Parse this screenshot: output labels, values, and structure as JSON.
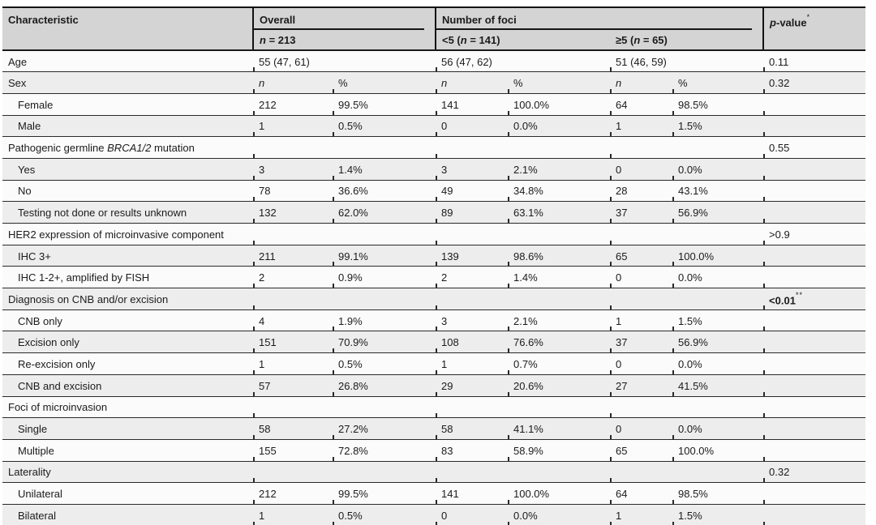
{
  "table": {
    "header": {
      "characteristic": "Characteristic",
      "overall_label": "Overall",
      "overall_n": "n",
      "overall_n_rest": " = 213",
      "foci_label": "Number of foci",
      "lt5_prefix": "<5 (",
      "lt5_n": "n",
      "lt5_rest": " = 141)",
      "ge5_prefix": "≥5 (",
      "ge5_n": "n",
      "ge5_rest": " = 65)",
      "pvalue_p": "p",
      "pvalue_rest": "-value",
      "pvalue_sup": "*"
    },
    "rows": [
      {
        "label": "Age",
        "type": "span2",
        "cells": [
          "55 (47, 61)",
          "56 (47, 62)",
          "51 (46, 59)"
        ],
        "p": "0.11"
      },
      {
        "label": "Sex",
        "type": "colhead",
        "cells": [
          "n",
          "%",
          "n",
          "%",
          "n",
          "%"
        ],
        "p": "0.32"
      },
      {
        "label": "Female",
        "indent": true,
        "type": "data",
        "cells": [
          "212",
          "99.5%",
          "141",
          "100.0%",
          "64",
          "98.5%"
        ],
        "p": ""
      },
      {
        "label": "Male",
        "indent": true,
        "type": "data",
        "cells": [
          "1",
          "0.5%",
          "0",
          "0.0%",
          "1",
          "1.5%"
        ],
        "p": ""
      },
      {
        "label_parts": [
          {
            "t": "Pathogenic germline "
          },
          {
            "t": "BRCA1/2",
            "italic": true
          },
          {
            "t": " mutation"
          }
        ],
        "type": "category",
        "p": "0.55"
      },
      {
        "label": "Yes",
        "indent": true,
        "type": "data",
        "cells": [
          "3",
          "1.4%",
          "3",
          "2.1%",
          "0",
          "0.0%"
        ],
        "p": ""
      },
      {
        "label": "No",
        "indent": true,
        "type": "data",
        "cells": [
          "78",
          "36.6%",
          "49",
          "34.8%",
          "28",
          "43.1%"
        ],
        "p": ""
      },
      {
        "label": "Testing not done or results unknown",
        "indent": true,
        "type": "data",
        "cells": [
          "132",
          "62.0%",
          "89",
          "63.1%",
          "37",
          "56.9%"
        ],
        "p": ""
      },
      {
        "label": "HER2 expression of microinvasive component",
        "type": "category",
        "p": ">0.9"
      },
      {
        "label": "IHC 3+",
        "indent": true,
        "type": "data",
        "cells": [
          "211",
          "99.1%",
          "139",
          "98.6%",
          "65",
          "100.0%"
        ],
        "p": ""
      },
      {
        "label": "IHC 1-2+, amplified by FISH",
        "indent": true,
        "type": "data",
        "cells": [
          "2",
          "0.9%",
          "2",
          "1.4%",
          "0",
          "0.0%"
        ],
        "p": ""
      },
      {
        "label": "Diagnosis on CNB and/or excision",
        "type": "category",
        "p": "<0.01",
        "p_sup": "**",
        "p_bold": true
      },
      {
        "label": "CNB only",
        "indent": true,
        "type": "data",
        "cells": [
          "4",
          "1.9%",
          "3",
          "2.1%",
          "1",
          "1.5%"
        ],
        "p": ""
      },
      {
        "label": "Excision only",
        "indent": true,
        "type": "data",
        "cells": [
          "151",
          "70.9%",
          "108",
          "76.6%",
          "37",
          "56.9%"
        ],
        "p": ""
      },
      {
        "label": "Re-excision only",
        "indent": true,
        "type": "data",
        "cells": [
          "1",
          "0.5%",
          "1",
          "0.7%",
          "0",
          "0.0%"
        ],
        "p": ""
      },
      {
        "label": "CNB and excision",
        "indent": true,
        "type": "data",
        "cells": [
          "57",
          "26.8%",
          "29",
          "20.6%",
          "27",
          "41.5%"
        ],
        "p": ""
      },
      {
        "label": "Foci of microinvasion",
        "type": "category",
        "p": ""
      },
      {
        "label": "Single",
        "indent": true,
        "type": "data",
        "cells": [
          "58",
          "27.2%",
          "58",
          "41.1%",
          "0",
          "0.0%"
        ],
        "p": ""
      },
      {
        "label": "Multiple",
        "indent": true,
        "type": "data",
        "cells": [
          "155",
          "72.8%",
          "83",
          "58.9%",
          "65",
          "100.0%"
        ],
        "p": ""
      },
      {
        "label": "Laterality",
        "type": "category",
        "p": "0.32"
      },
      {
        "label": "Unilateral",
        "indent": true,
        "type": "data",
        "cells": [
          "212",
          "99.5%",
          "141",
          "100.0%",
          "64",
          "98.5%"
        ],
        "p": ""
      },
      {
        "label": "Bilateral",
        "indent": true,
        "type": "data",
        "cells": [
          "1",
          "0.5%",
          "0",
          "0.0%",
          "1",
          "1.5%"
        ],
        "p": ""
      }
    ]
  },
  "colors": {
    "header_bg": "#d4d4d4",
    "row_shaded": "#ededed",
    "row_plain": "#fbfbfb",
    "border": "#2a2a2a",
    "text": "#1b1b1b"
  }
}
